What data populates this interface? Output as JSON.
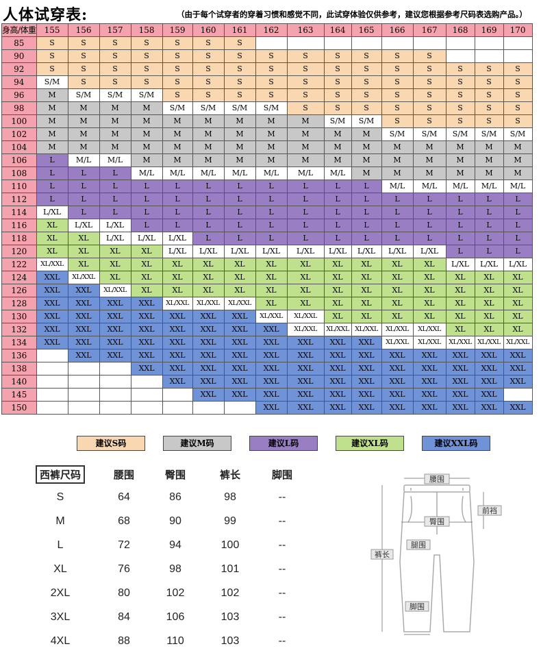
{
  "title": "人体试穿表:",
  "note": "（由于每个试穿者的穿着习惯和感觉不同，此试穿体验仅供参考，建议您根据参考尺码表选购产品。）",
  "corner": "身高/体重",
  "heights": [
    "155",
    "156",
    "157",
    "158",
    "159",
    "160",
    "161",
    "162",
    "163",
    "164",
    "165",
    "166",
    "167",
    "168",
    "169",
    "170"
  ],
  "weights": [
    "85",
    "90",
    "92",
    "94",
    "96",
    "98",
    "100",
    "102",
    "104",
    "106",
    "108",
    "110",
    "112",
    "114",
    "116",
    "118",
    "120",
    "122",
    "124",
    "126",
    "128",
    "130",
    "132",
    "134",
    "136",
    "138",
    "140",
    "145",
    "150"
  ],
  "rows": [
    [
      "S",
      "S",
      "S",
      "S",
      "S",
      "S",
      "S",
      "",
      "",
      "",
      "",
      "",
      "",
      "",
      "",
      ""
    ],
    [
      "S",
      "S",
      "S",
      "S",
      "S",
      "S",
      "S",
      "S",
      "S",
      "S",
      "S",
      "S",
      "S",
      "",
      "",
      ""
    ],
    [
      "S",
      "S",
      "S",
      "S",
      "S",
      "S",
      "S",
      "S",
      "S",
      "S",
      "S",
      "S",
      "S",
      "S",
      "S",
      "S"
    ],
    [
      "S/M",
      "S",
      "S",
      "S",
      "S",
      "S",
      "S",
      "S",
      "S",
      "S",
      "S",
      "S",
      "S",
      "S",
      "S",
      "S"
    ],
    [
      "M",
      "S/M",
      "S/M",
      "S/M",
      "S",
      "S",
      "S",
      "S",
      "S",
      "S",
      "S",
      "S",
      "S",
      "S",
      "S",
      "S"
    ],
    [
      "M",
      "M",
      "M",
      "M",
      "S/M",
      "S/M",
      "S/M",
      "S/M",
      "S",
      "S",
      "S",
      "S",
      "S",
      "S",
      "S",
      "S"
    ],
    [
      "M",
      "M",
      "M",
      "M",
      "M",
      "M",
      "M",
      "M",
      "M",
      "S/M",
      "S/M",
      "S",
      "S",
      "S",
      "S",
      "S"
    ],
    [
      "M",
      "M",
      "M",
      "M",
      "M",
      "M",
      "M",
      "M",
      "M",
      "M",
      "M",
      "S/M",
      "S/M",
      "S/M",
      "S/M",
      "S/M"
    ],
    [
      "M",
      "M",
      "M",
      "M",
      "M",
      "M",
      "M",
      "M",
      "M",
      "M",
      "M",
      "M",
      "M",
      "M",
      "M",
      "M"
    ],
    [
      "L",
      "M/L",
      "M/L",
      "M",
      "M",
      "M",
      "M",
      "M",
      "M",
      "M",
      "M",
      "M",
      "M",
      "M",
      "M",
      "M"
    ],
    [
      "L",
      "L",
      "L",
      "M/L",
      "M/L",
      "M/L",
      "M/L",
      "M/L",
      "M/L",
      "M/L",
      "M",
      "M",
      "M",
      "M",
      "M",
      "M"
    ],
    [
      "L",
      "L",
      "L",
      "L",
      "L",
      "L",
      "L",
      "L",
      "L",
      "L",
      "L",
      "M/L",
      "M/L",
      "M/L",
      "M/L",
      "M/L"
    ],
    [
      "L",
      "L",
      "L",
      "L",
      "L",
      "L",
      "L",
      "L",
      "L",
      "L",
      "L",
      "L",
      "L",
      "L",
      "L",
      "L"
    ],
    [
      "L/XL",
      "L",
      "L",
      "L",
      "L",
      "L",
      "L",
      "L",
      "L",
      "L",
      "L",
      "L",
      "L",
      "L",
      "L",
      "L"
    ],
    [
      "XL",
      "L/XL",
      "L/XL",
      "L",
      "L",
      "L",
      "L",
      "L",
      "L",
      "L",
      "L",
      "L",
      "L",
      "L",
      "L",
      "L"
    ],
    [
      "XL",
      "XL",
      "L/XL",
      "L/XL",
      "L/XL",
      "L",
      "L",
      "L",
      "L",
      "L",
      "L",
      "L",
      "L",
      "L",
      "L",
      "L"
    ],
    [
      "XL",
      "XL",
      "XL",
      "XL",
      "L/XL",
      "L/XL",
      "L/XL",
      "L/XL",
      "L/XL",
      "L/XL",
      "L/XL",
      "L/XL",
      "L/XL",
      "L",
      "L",
      "L"
    ],
    [
      "XL/XXL",
      "XL",
      "XL",
      "XL",
      "XL",
      "XL",
      "XL",
      "XL",
      "XL",
      "XL",
      "XL",
      "XL",
      "XL",
      "L/XL",
      "L/XL",
      "L/XL"
    ],
    [
      "XXL",
      "XL/XXL",
      "XL",
      "XL",
      "XL",
      "XL",
      "XL",
      "XL",
      "XL",
      "XL",
      "XL",
      "XL",
      "XL",
      "XL",
      "XL",
      "XL"
    ],
    [
      "XXL",
      "XXL",
      "XL/XXL",
      "XL",
      "XL",
      "XL",
      "XL",
      "XL",
      "XL",
      "XL",
      "XL",
      "XL",
      "XL",
      "XL",
      "XL",
      "XL"
    ],
    [
      "XXL",
      "XXL",
      "XXL",
      "XXL",
      "XL/XXL",
      "XL/XXL",
      "XL/XXL",
      "XL",
      "XL",
      "XL",
      "XL",
      "XL",
      "XL",
      "XL",
      "XL",
      "XL"
    ],
    [
      "XXL",
      "XXL",
      "XXL",
      "XXL",
      "XXL",
      "XXL",
      "XXL",
      "XL/XXL",
      "XL/XXL",
      "XL",
      "XL",
      "XL",
      "XL",
      "XL",
      "XL",
      "XL"
    ],
    [
      "XXL",
      "XXL",
      "XXL",
      "XXL",
      "XXL",
      "XXL",
      "XXL",
      "XXL",
      "XL/XXL",
      "XL/XXL",
      "XL/XXL",
      "XL/XXL",
      "XL/XXL",
      "XL",
      "XL",
      "XL"
    ],
    [
      "XXL",
      "XXL",
      "XXL",
      "XXL",
      "XXL",
      "XXL",
      "XXL",
      "XXL",
      "XXL",
      "XXL",
      "XXL",
      "XL/XXL",
      "XL/XXL",
      "XL/XXL",
      "XL/XXL",
      "XL/XXL"
    ],
    [
      "",
      "XXL",
      "XXL",
      "XXL",
      "XXL",
      "XXL",
      "XXL",
      "XXL",
      "XXL",
      "XXL",
      "XXL",
      "XXL",
      "XXL",
      "XXL",
      "XXL",
      "XXL"
    ],
    [
      "",
      "",
      "",
      "XXL",
      "XXL",
      "XXL",
      "XXL",
      "XXL",
      "XXL",
      "XXL",
      "XXL",
      "XXL",
      "XXL",
      "XXL",
      "XXL",
      "XXL"
    ],
    [
      "",
      "",
      "",
      "",
      "XXL",
      "XXL",
      "XXL",
      "XXL",
      "XXL",
      "XXL",
      "XXL",
      "XXL",
      "XXL",
      "XXL",
      "XXL",
      "XXL"
    ],
    [
      "",
      "",
      "",
      "",
      "",
      "XXL",
      "XXL",
      "XXL",
      "XXL",
      "XXL",
      "XXL",
      "XXL",
      "XXL",
      "XXL",
      "XXL",
      ""
    ],
    [
      "",
      "",
      "",
      "",
      "",
      "",
      "",
      "XXL",
      "XXL",
      "XXL",
      "XXL",
      "XXL",
      "XXL",
      "XXL",
      "XXL",
      "XXL"
    ]
  ],
  "colors": {
    "S": "#f9d8b1",
    "S/M": "#ffffff",
    "M": "#c8c8c8",
    "M/L": "#ffffff",
    "L": "#9a7ec4",
    "L/XL": "#ffffff",
    "XL": "#bfe08d",
    "XL/XXL": "#ffffff",
    "XXL": "#6f93d6",
    "header": "#f4a3ae"
  },
  "legend": [
    {
      "label": "建议S码",
      "color": "#f9d8b1"
    },
    {
      "label": "建议M码",
      "color": "#c8c8c8"
    },
    {
      "label": "建议L码",
      "color": "#9a7ec4"
    },
    {
      "label": "建议XL码",
      "color": "#bfe08d"
    },
    {
      "label": "建议XXL码",
      "color": "#6f93d6"
    }
  ],
  "pants": {
    "headers": [
      "西裤尺码",
      "腰围",
      "臀围",
      "裤长",
      "脚围"
    ],
    "rows": [
      [
        "S",
        "64",
        "86",
        "98",
        "--"
      ],
      [
        "M",
        "68",
        "90",
        "99",
        "--"
      ],
      [
        "L",
        "72",
        "94",
        "100",
        "--"
      ],
      [
        "XL",
        "76",
        "98",
        "101",
        "--"
      ],
      [
        "2XL",
        "80",
        "102",
        "102",
        "--"
      ],
      [
        "3XL",
        "84",
        "106",
        "103",
        "--"
      ],
      [
        "4XL",
        "88",
        "110",
        "103",
        "--"
      ]
    ]
  },
  "diagram": {
    "waist": "腰围",
    "front_rise": "前裆",
    "hip": "臀围",
    "thigh": "腿围",
    "length": "裤长",
    "hem": "脚围"
  }
}
